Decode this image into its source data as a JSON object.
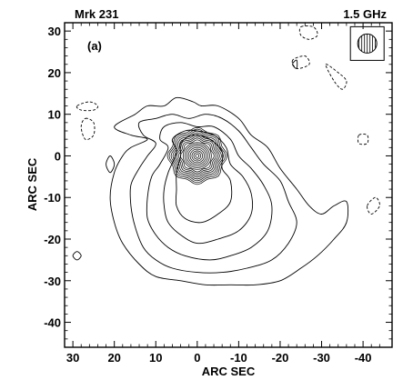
{
  "chart_data": {
    "type": "contour",
    "title_left": "Mrk 231",
    "title_right": "1.5 GHz",
    "panel_label": "(a)",
    "xlabel": "ARC SEC",
    "ylabel": "ARC SEC",
    "xlim": [
      32,
      -47
    ],
    "ylim": [
      -46,
      32
    ],
    "x_ticks": [
      30,
      20,
      10,
      0,
      -10,
      -20,
      -30,
      -40
    ],
    "x_tick_labels": [
      "30",
      "20",
      "10",
      "0",
      "-10",
      "-20",
      "-30",
      "-40"
    ],
    "y_ticks": [
      30,
      20,
      10,
      0,
      -10,
      -20,
      -30,
      -40
    ],
    "y_tick_labels": [
      "30",
      "20",
      "10",
      "0",
      "-10",
      "-20",
      "-30",
      "-40"
    ],
    "grid": false,
    "core": {
      "x": 0,
      "y": 0,
      "n_levels": 16,
      "max_radius": 6.5
    },
    "positive_contours": [
      {
        "points": [
          [
            12,
            4
          ],
          [
            16,
            5
          ],
          [
            20,
            7
          ],
          [
            15,
            10
          ],
          [
            12,
            12
          ],
          [
            8,
            12
          ],
          [
            5,
            14
          ],
          [
            1,
            13
          ],
          [
            -1,
            12
          ],
          [
            -5,
            12
          ],
          [
            -10,
            9
          ],
          [
            -13,
            5
          ],
          [
            -17,
            2
          ],
          [
            -20,
            -3
          ],
          [
            -24,
            -8
          ],
          [
            -27,
            -12
          ],
          [
            -30,
            -14
          ],
          [
            -33,
            -12
          ],
          [
            -36,
            -11
          ],
          [
            -36,
            -16
          ],
          [
            -33,
            -20
          ],
          [
            -29,
            -24
          ],
          [
            -25,
            -27
          ],
          [
            -20,
            -30
          ],
          [
            -14,
            -31
          ],
          [
            -8,
            -31
          ],
          [
            -2,
            -31
          ],
          [
            4,
            -30
          ],
          [
            10,
            -29
          ],
          [
            14,
            -26
          ],
          [
            18,
            -21
          ],
          [
            20,
            -16
          ],
          [
            21,
            -10
          ],
          [
            20,
            -4
          ],
          [
            18,
            0
          ],
          [
            16,
            2
          ]
        ]
      },
      {
        "points": [
          [
            10,
            3
          ],
          [
            13,
            5
          ],
          [
            14,
            8
          ],
          [
            10,
            9
          ],
          [
            6,
            10
          ],
          [
            2,
            9
          ],
          [
            -2,
            10
          ],
          [
            -6,
            9
          ],
          [
            -10,
            6
          ],
          [
            -13,
            2
          ],
          [
            -16,
            -2
          ],
          [
            -20,
            -6
          ],
          [
            -22,
            -11
          ],
          [
            -24,
            -16
          ],
          [
            -22,
            -21
          ],
          [
            -18,
            -25
          ],
          [
            -12,
            -27
          ],
          [
            -6,
            -28
          ],
          [
            0,
            -28
          ],
          [
            6,
            -27
          ],
          [
            10,
            -25
          ],
          [
            13,
            -22
          ],
          [
            15,
            -17
          ],
          [
            16,
            -12
          ],
          [
            16,
            -7
          ],
          [
            14,
            -3
          ],
          [
            12,
            0
          ]
        ]
      },
      {
        "points": [
          [
            7,
            2
          ],
          [
            9,
            4
          ],
          [
            8,
            7
          ],
          [
            4,
            8
          ],
          [
            0,
            7
          ],
          [
            -4,
            7
          ],
          [
            -8,
            4
          ],
          [
            -10,
            0
          ],
          [
            -13,
            -3
          ],
          [
            -16,
            -7
          ],
          [
            -18,
            -12
          ],
          [
            -17,
            -18
          ],
          [
            -13,
            -22
          ],
          [
            -8,
            -24
          ],
          [
            -3,
            -25
          ],
          [
            3,
            -24
          ],
          [
            7,
            -22
          ],
          [
            10,
            -19
          ],
          [
            12,
            -15
          ],
          [
            12,
            -10
          ],
          [
            11,
            -5
          ],
          [
            9,
            -2
          ]
        ]
      },
      {
        "points": [
          [
            5,
            1
          ],
          [
            6,
            4
          ],
          [
            3,
            6
          ],
          [
            0,
            6
          ],
          [
            -4,
            5
          ],
          [
            -7,
            2
          ],
          [
            -8,
            -2
          ],
          [
            -11,
            -5
          ],
          [
            -13,
            -9
          ],
          [
            -13,
            -14
          ],
          [
            -10,
            -18
          ],
          [
            -5,
            -20
          ],
          [
            0,
            -21
          ],
          [
            4,
            -19
          ],
          [
            7,
            -16
          ],
          [
            8,
            -12
          ],
          [
            8,
            -8
          ],
          [
            7,
            -4
          ]
        ]
      },
      {
        "points": [
          [
            4,
            0
          ],
          [
            4,
            3
          ],
          [
            1,
            5
          ],
          [
            -3,
            4
          ],
          [
            -6,
            1
          ],
          [
            -6,
            -3
          ],
          [
            -8,
            -6
          ],
          [
            -8,
            -11
          ],
          [
            -5,
            -14
          ],
          [
            -1,
            -16
          ],
          [
            3,
            -15
          ],
          [
            5,
            -12
          ],
          [
            5,
            -8
          ],
          [
            5,
            -4
          ]
        ]
      }
    ],
    "negative_contours": [
      {
        "points": [
          [
            29,
            12
          ],
          [
            26,
            13
          ],
          [
            24,
            12
          ],
          [
            25,
            11
          ],
          [
            28,
            11
          ]
        ]
      },
      {
        "points": [
          [
            27,
            9
          ],
          [
            25,
            8
          ],
          [
            25,
            5
          ],
          [
            27,
            4
          ],
          [
            28,
            7
          ]
        ]
      },
      {
        "points": [
          [
            -25,
            31
          ],
          [
            -28,
            31
          ],
          [
            -29,
            29
          ],
          [
            -27,
            28
          ],
          [
            -25,
            29
          ]
        ]
      },
      {
        "points": [
          [
            -23,
            23
          ],
          [
            -24,
            21
          ],
          [
            -27,
            22
          ],
          [
            -26,
            24
          ]
        ]
      },
      {
        "points": [
          [
            -31,
            22
          ],
          [
            -34,
            20
          ],
          [
            -36,
            18
          ],
          [
            -35,
            16
          ],
          [
            -33,
            18
          ]
        ]
      },
      {
        "points": [
          [
            -39,
            5
          ],
          [
            -41,
            5
          ],
          [
            -41,
            3
          ],
          [
            -39,
            3
          ]
        ]
      },
      {
        "points": [
          [
            -41,
            -12
          ],
          [
            -43,
            -10
          ],
          [
            -44,
            -12
          ],
          [
            -42,
            -14
          ]
        ]
      }
    ],
    "isolated_contours": [
      {
        "points": [
          [
            29,
            -23
          ],
          [
            28,
            -24
          ],
          [
            29,
            -25
          ],
          [
            30,
            -24
          ]
        ]
      },
      {
        "points": [
          [
            21,
            0
          ],
          [
            20,
            -2
          ],
          [
            21,
            -4
          ],
          [
            22,
            -2
          ]
        ]
      },
      {
        "points": [
          [
            -24,
            23
          ],
          [
            -23,
            22
          ],
          [
            -24,
            21
          ]
        ]
      }
    ],
    "beam": {
      "x": -41,
      "y": 27,
      "radius": 2.3
    }
  }
}
